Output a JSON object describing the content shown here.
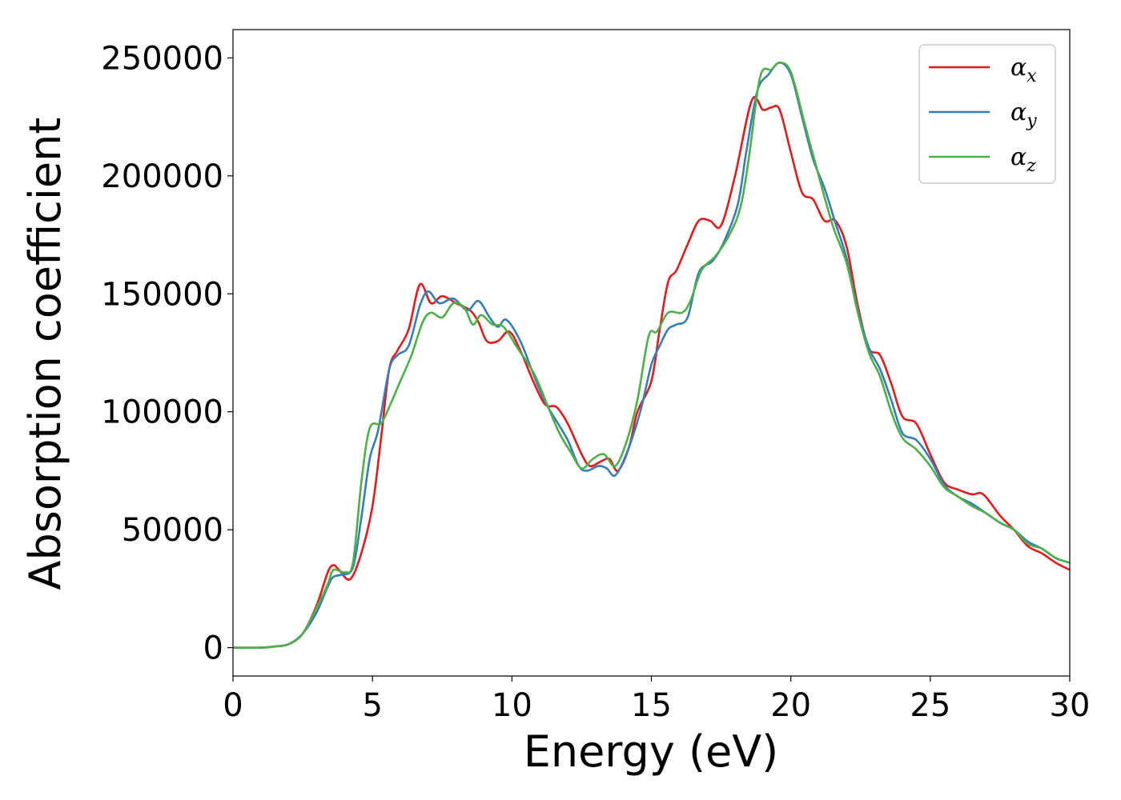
{
  "chart_data": {
    "type": "line",
    "xlabel": "Energy (eV)",
    "ylabel": "Absorption coefficient",
    "xlim": [
      0,
      30
    ],
    "ylim": [
      -12000,
      262000
    ],
    "x_ticks": [
      0,
      5,
      10,
      15,
      20,
      25,
      30
    ],
    "x_tick_labels": [
      "0",
      "5",
      "10",
      "15",
      "20",
      "25",
      "30"
    ],
    "y_ticks": [
      0,
      50000,
      100000,
      150000,
      200000,
      250000
    ],
    "y_tick_labels": [
      "0",
      "50000",
      "100000",
      "150000",
      "200000",
      "250000"
    ],
    "grid": false,
    "legend_position": "top-right",
    "series": [
      {
        "name": "α",
        "subscript": "x",
        "color": "#e41a1c",
        "points": [
          [
            0,
            0
          ],
          [
            1,
            0
          ],
          [
            1.5,
            500
          ],
          [
            2,
            1500
          ],
          [
            2.5,
            6000
          ],
          [
            3,
            18000
          ],
          [
            3.4,
            32000
          ],
          [
            3.6,
            35000
          ],
          [
            3.8,
            33000
          ],
          [
            4.2,
            29000
          ],
          [
            4.6,
            40000
          ],
          [
            5,
            60000
          ],
          [
            5.3,
            88000
          ],
          [
            5.6,
            118000
          ],
          [
            5.9,
            126000
          ],
          [
            6.3,
            135000
          ],
          [
            6.7,
            154000
          ],
          [
            7.1,
            146000
          ],
          [
            7.5,
            149000
          ],
          [
            8,
            146000
          ],
          [
            8.5,
            143000
          ],
          [
            8.8,
            138000
          ],
          [
            9.1,
            130000
          ],
          [
            9.5,
            130000
          ],
          [
            9.9,
            134000
          ],
          [
            10.3,
            126000
          ],
          [
            10.8,
            112000
          ],
          [
            11.2,
            103000
          ],
          [
            11.6,
            102000
          ],
          [
            12,
            95000
          ],
          [
            12.5,
            82000
          ],
          [
            12.8,
            77000
          ],
          [
            13.2,
            79000
          ],
          [
            13.5,
            80000
          ],
          [
            13.8,
            75000
          ],
          [
            14.2,
            85000
          ],
          [
            14.5,
            100000
          ],
          [
            15,
            113000
          ],
          [
            15.3,
            135000
          ],
          [
            15.6,
            155000
          ],
          [
            15.9,
            160000
          ],
          [
            16.3,
            171000
          ],
          [
            16.7,
            181000
          ],
          [
            17.1,
            181000
          ],
          [
            17.5,
            179000
          ],
          [
            18,
            200000
          ],
          [
            18.6,
            232000
          ],
          [
            19,
            228000
          ],
          [
            19.3,
            229000
          ],
          [
            19.6,
            228000
          ],
          [
            20,
            210000
          ],
          [
            20.4,
            193000
          ],
          [
            20.8,
            190000
          ],
          [
            21.2,
            181000
          ],
          [
            21.6,
            181000
          ],
          [
            22,
            170000
          ],
          [
            22.4,
            145000
          ],
          [
            22.8,
            127000
          ],
          [
            23.2,
            124000
          ],
          [
            23.6,
            112000
          ],
          [
            24,
            98000
          ],
          [
            24.5,
            95000
          ],
          [
            25,
            82000
          ],
          [
            25.5,
            70000
          ],
          [
            26,
            67000
          ],
          [
            26.5,
            65000
          ],
          [
            26.9,
            65000
          ],
          [
            27.5,
            56000
          ],
          [
            28,
            50000
          ],
          [
            28.5,
            43000
          ],
          [
            29,
            40000
          ],
          [
            29.5,
            36000
          ],
          [
            30,
            33000
          ]
        ]
      },
      {
        "name": "α",
        "subscript": "y",
        "color": "#377eb8",
        "points": [
          [
            0,
            0
          ],
          [
            1,
            0
          ],
          [
            1.5,
            500
          ],
          [
            2,
            1500
          ],
          [
            2.5,
            6000
          ],
          [
            3,
            15000
          ],
          [
            3.4,
            26000
          ],
          [
            3.6,
            30000
          ],
          [
            3.9,
            31000
          ],
          [
            4.3,
            34000
          ],
          [
            4.6,
            55000
          ],
          [
            4.9,
            80000
          ],
          [
            5.2,
            92000
          ],
          [
            5.6,
            118000
          ],
          [
            5.9,
            124000
          ],
          [
            6.3,
            128000
          ],
          [
            6.7,
            145000
          ],
          [
            7,
            151000
          ],
          [
            7.4,
            146000
          ],
          [
            7.9,
            148000
          ],
          [
            8.4,
            143000
          ],
          [
            8.8,
            147000
          ],
          [
            9.2,
            140000
          ],
          [
            9.5,
            136000
          ],
          [
            9.8,
            139000
          ],
          [
            10.3,
            130000
          ],
          [
            10.8,
            115000
          ],
          [
            11.2,
            104000
          ],
          [
            11.6,
            96000
          ],
          [
            12,
            88000
          ],
          [
            12.4,
            77000
          ],
          [
            12.7,
            75000
          ],
          [
            13.1,
            77000
          ],
          [
            13.4,
            76000
          ],
          [
            13.7,
            73000
          ],
          [
            14.1,
            82000
          ],
          [
            14.6,
            100000
          ],
          [
            15,
            120000
          ],
          [
            15.3,
            128000
          ],
          [
            15.6,
            135000
          ],
          [
            15.9,
            137000
          ],
          [
            16.3,
            140000
          ],
          [
            16.7,
            159000
          ],
          [
            17.2,
            164000
          ],
          [
            17.6,
            172000
          ],
          [
            18.1,
            188000
          ],
          [
            18.4,
            210000
          ],
          [
            18.8,
            236000
          ],
          [
            19.2,
            243000
          ],
          [
            19.6,
            248000
          ],
          [
            20,
            243000
          ],
          [
            20.4,
            225000
          ],
          [
            20.8,
            207000
          ],
          [
            21.2,
            195000
          ],
          [
            21.6,
            180000
          ],
          [
            22,
            165000
          ],
          [
            22.4,
            143000
          ],
          [
            22.8,
            127000
          ],
          [
            23.2,
            118000
          ],
          [
            23.6,
            105000
          ],
          [
            24,
            91000
          ],
          [
            24.5,
            88000
          ],
          [
            25,
            80000
          ],
          [
            25.5,
            69000
          ],
          [
            26,
            64000
          ],
          [
            26.5,
            61000
          ],
          [
            27,
            57000
          ],
          [
            27.5,
            53000
          ],
          [
            28,
            50000
          ],
          [
            28.5,
            45000
          ],
          [
            29,
            42000
          ],
          [
            29.5,
            38000
          ],
          [
            30,
            36000
          ]
        ]
      },
      {
        "name": "α",
        "subscript": "z",
        "color": "#4daf4a",
        "points": [
          [
            0,
            0
          ],
          [
            1,
            0
          ],
          [
            1.5,
            500
          ],
          [
            2,
            1500
          ],
          [
            2.5,
            6000
          ],
          [
            3,
            17000
          ],
          [
            3.4,
            27000
          ],
          [
            3.6,
            33000
          ],
          [
            4,
            32000
          ],
          [
            4.3,
            36000
          ],
          [
            4.6,
            70000
          ],
          [
            4.9,
            93000
          ],
          [
            5.3,
            95000
          ],
          [
            5.6,
            102000
          ],
          [
            6,
            113000
          ],
          [
            6.4,
            124000
          ],
          [
            6.8,
            138000
          ],
          [
            7.1,
            142000
          ],
          [
            7.5,
            140000
          ],
          [
            7.9,
            146000
          ],
          [
            8.3,
            144000
          ],
          [
            8.6,
            137000
          ],
          [
            8.9,
            141000
          ],
          [
            9.3,
            137000
          ],
          [
            9.7,
            136000
          ],
          [
            10.2,
            127000
          ],
          [
            10.8,
            116000
          ],
          [
            11.3,
            102000
          ],
          [
            11.7,
            91000
          ],
          [
            12.1,
            83000
          ],
          [
            12.5,
            76000
          ],
          [
            12.9,
            80000
          ],
          [
            13.3,
            82000
          ],
          [
            13.7,
            77000
          ],
          [
            14.1,
            87000
          ],
          [
            14.5,
            105000
          ],
          [
            14.9,
            132000
          ],
          [
            15.2,
            134000
          ],
          [
            15.6,
            142000
          ],
          [
            16.1,
            142000
          ],
          [
            16.4,
            147000
          ],
          [
            16.8,
            160000
          ],
          [
            17.3,
            166000
          ],
          [
            17.8,
            175000
          ],
          [
            18.2,
            187000
          ],
          [
            18.5,
            208000
          ],
          [
            18.9,
            242000
          ],
          [
            19.3,
            245000
          ],
          [
            19.6,
            248000
          ],
          [
            20,
            244000
          ],
          [
            20.5,
            222000
          ],
          [
            21,
            200000
          ],
          [
            21.5,
            179000
          ],
          [
            22,
            163000
          ],
          [
            22.4,
            142000
          ],
          [
            22.8,
            125000
          ],
          [
            23.2,
            115000
          ],
          [
            23.6,
            100000
          ],
          [
            24,
            89000
          ],
          [
            24.5,
            84000
          ],
          [
            25,
            77000
          ],
          [
            25.5,
            68000
          ],
          [
            26,
            64000
          ],
          [
            26.5,
            60000
          ],
          [
            27,
            57000
          ],
          [
            27.5,
            53000
          ],
          [
            28,
            50000
          ],
          [
            28.5,
            44000
          ],
          [
            29,
            42000
          ],
          [
            29.5,
            38000
          ],
          [
            30,
            36000
          ]
        ]
      }
    ]
  }
}
